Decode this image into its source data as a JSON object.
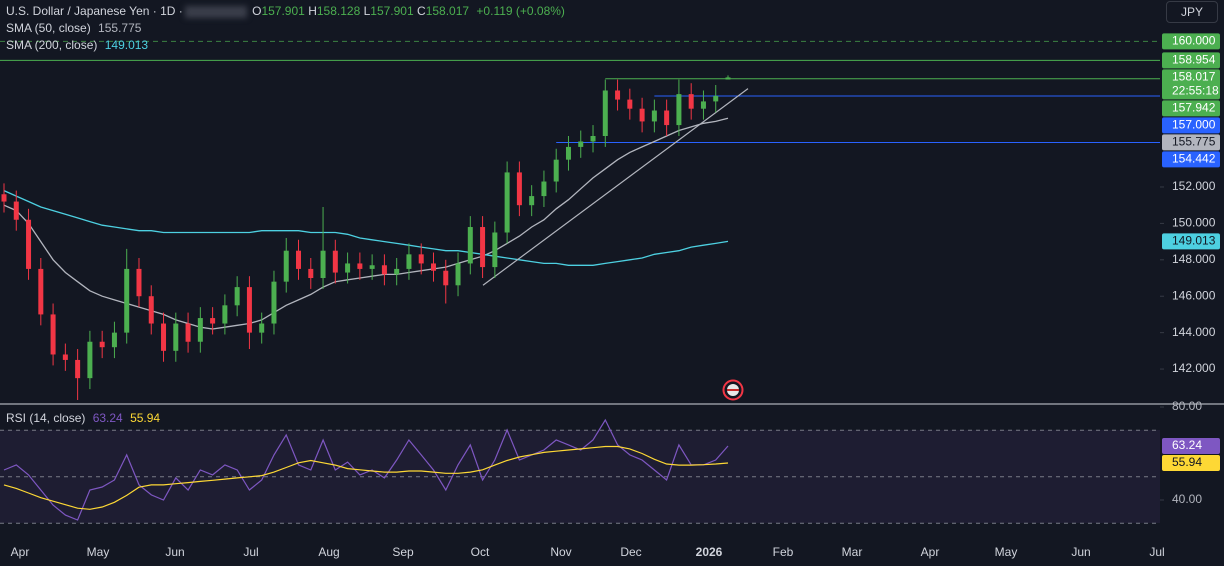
{
  "currency": "JPY",
  "chart_data": [
    {
      "type": "candlestick",
      "title": "U.S. Dollar / Japanese Yen · 1D ·",
      "ohlc_letters": [
        "O",
        "H",
        "L",
        "C"
      ],
      "change": "+0.119 (+0.08%)",
      "countdown": "22:55:18",
      "up_color": "#4caf50",
      "down_color": "#f23645",
      "open": [
        151.6,
        151.2,
        150.2,
        147.5,
        145,
        142.8,
        142.5,
        141.5,
        143.5,
        143.2,
        144,
        147.5,
        146,
        144.5,
        143,
        144.5,
        143.5,
        144.8,
        144.5,
        145.5,
        146.5,
        144,
        144.5,
        146.8,
        148.5,
        147.5,
        147,
        148.5,
        147.3,
        147.8,
        147.5,
        147.7,
        147.2,
        147.5,
        148.3,
        147.8,
        147.4,
        146.6,
        147.8,
        149.8,
        147.6,
        149.5,
        152.8,
        151,
        151.5,
        152.3,
        153.5,
        154.2,
        154.5,
        154.8,
        157.3,
        156.8,
        156.3,
        155.6,
        156.2,
        155.4,
        157.1,
        156.3,
        156.7,
        157.901
      ],
      "high": [
        152.2,
        151.8,
        150.8,
        148.1,
        145.6,
        143.4,
        143.1,
        144.1,
        144.1,
        144.6,
        148.6,
        148.1,
        146.6,
        145.1,
        145.1,
        145.1,
        145.4,
        145.4,
        146.1,
        147.1,
        147.1,
        145.1,
        147.4,
        149.2,
        149.1,
        148.1,
        150.9,
        149.1,
        148.4,
        148.4,
        148.3,
        148.3,
        148.1,
        148.9,
        148.9,
        148.4,
        148,
        148.4,
        150.4,
        150.4,
        150.1,
        153.4,
        153.4,
        152.1,
        152.9,
        154.1,
        154.8,
        155.1,
        155.4,
        157.9,
        157.9,
        157.4,
        156.9,
        156.8,
        156.8,
        157.9,
        157.7,
        157.3,
        157.6,
        158.128
      ],
      "low": [
        150.6,
        149.6,
        146.9,
        144.4,
        142.2,
        141.9,
        140.3,
        140.9,
        142.6,
        142.6,
        143.4,
        145.4,
        143.9,
        142.4,
        142.4,
        142.9,
        142.9,
        143.9,
        143.9,
        144.9,
        143.1,
        143.4,
        143.9,
        146.2,
        146.9,
        146.4,
        146.4,
        146.7,
        146.7,
        146.9,
        146.9,
        146.6,
        146.6,
        146.9,
        147.2,
        146.8,
        145.6,
        146,
        147.2,
        147,
        147,
        148.9,
        150.4,
        150.4,
        150.9,
        151.7,
        152.9,
        153.6,
        153.9,
        154.2,
        156.2,
        155.7,
        155,
        155,
        154.8,
        154.8,
        155.7,
        155.7,
        156.1,
        157.901
      ],
      "close": [
        151.2,
        150.2,
        147.5,
        145,
        142.8,
        142.5,
        141.5,
        143.5,
        143.2,
        144,
        147.5,
        146,
        144.5,
        143,
        144.5,
        143.5,
        144.8,
        144.5,
        145.5,
        146.5,
        144,
        144.5,
        146.8,
        148.5,
        147.5,
        147,
        148.5,
        147.3,
        147.8,
        147.5,
        147.7,
        147.2,
        147.5,
        148.3,
        147.8,
        147.4,
        146.6,
        147.8,
        149.8,
        147.6,
        149.5,
        152.8,
        151,
        151.5,
        152.3,
        153.5,
        154.2,
        154.5,
        154.8,
        157.3,
        156.8,
        156.3,
        155.6,
        156.2,
        155.4,
        157.1,
        156.3,
        156.7,
        157,
        158.017
      ],
      "series": [
        {
          "name": "SMA (50, close)",
          "color": "#b2b5be",
          "values": [
            151,
            150.7,
            150,
            149,
            148,
            147.3,
            146.8,
            146.3,
            146,
            145.8,
            145.6,
            145.4,
            145.2,
            145,
            144.7,
            144.5,
            144.3,
            144.2,
            144.3,
            144.4,
            144.5,
            144.7,
            145.1,
            145.5,
            145.8,
            146.1,
            146.5,
            146.8,
            146.9,
            147,
            147.1,
            147.2,
            147.2,
            147.3,
            147.4,
            147.5,
            147.6,
            147.8,
            148,
            148.2,
            148.5,
            148.9,
            149.3,
            149.8,
            150.2,
            150.8,
            151.3,
            151.9,
            152.5,
            153,
            153.5,
            153.9,
            154.2,
            154.5,
            154.8,
            155.1,
            155.3,
            155.5,
            155.6,
            155.775
          ]
        },
        {
          "name": "SMA (200, close)",
          "color": "#4dd0e1",
          "values": [
            151.8,
            151.5,
            151.2,
            150.9,
            150.7,
            150.5,
            150.3,
            150.1,
            149.9,
            149.8,
            149.7,
            149.6,
            149.6,
            149.5,
            149.5,
            149.5,
            149.5,
            149.5,
            149.5,
            149.5,
            149.5,
            149.6,
            149.6,
            149.6,
            149.6,
            149.5,
            149.5,
            149.5,
            149.4,
            149.2,
            149.1,
            149,
            148.9,
            148.8,
            148.7,
            148.6,
            148.5,
            148.5,
            148.4,
            148.3,
            148.2,
            148.1,
            148,
            147.9,
            147.8,
            147.8,
            147.7,
            147.7,
            147.7,
            147.8,
            147.9,
            148,
            148.1,
            148.3,
            148.4,
            148.5,
            148.7,
            148.8,
            148.9,
            149.013
          ]
        }
      ],
      "levels": [
        {
          "value": 160,
          "label": "160.000",
          "color": "#4caf50",
          "style": "dashed"
        },
        {
          "value": 158.954,
          "label": "158.954",
          "color": "#4caf50",
          "style": "solid"
        },
        {
          "value": 157.942,
          "label": "157.942",
          "color": "#4caf50",
          "style": "solid"
        },
        {
          "value": 157,
          "label": "157.000",
          "color": "#2962ff",
          "style": "solid"
        },
        {
          "value": 154.442,
          "label": "154.442",
          "color": "#2962ff",
          "style": "solid"
        }
      ],
      "trendline": {
        "values": [
          146.6,
          157.4
        ],
        "color": "#b2b5be"
      },
      "ylim": [
        140.08,
        162.27
      ],
      "yticks": [
        {
          "value": 142,
          "label": "142.000"
        },
        {
          "value": 144,
          "label": "144.000"
        },
        {
          "value": 146,
          "label": "146.000"
        },
        {
          "value": 148,
          "label": "148.000"
        },
        {
          "value": 150,
          "label": "150.000"
        },
        {
          "value": 152,
          "label": "152.000"
        }
      ],
      "x_labels": [
        "Apr",
        "May",
        "Jun",
        "Jul",
        "Aug",
        "Sep",
        "Oct",
        "Nov",
        "Dec",
        "2026",
        "Feb",
        "Mar",
        "Apr",
        "May",
        "Jun",
        "Jul"
      ]
    },
    {
      "type": "line",
      "title": "RSI (14, close)",
      "series": [
        {
          "color": "#7e57c2",
          "values": [
            52.9,
            55.1,
            50.8,
            44.3,
            37.8,
            33.5,
            31.4,
            44.3,
            45.6,
            48.6,
            59.4,
            46.5,
            42.2,
            40,
            49.5,
            44.3,
            52.9,
            50.8,
            55.1,
            52.9,
            44.3,
            48.6,
            59.4,
            68,
            55.1,
            52.9,
            65.8,
            52.9,
            56.3,
            50.8,
            52.9,
            49.5,
            57.2,
            65.8,
            59.4,
            52.9,
            44.3,
            55.1,
            63.7,
            48.6,
            57.2,
            70.1,
            57.2,
            59.4,
            61.5,
            65.8,
            63.7,
            61.5,
            65.8,
            74.4,
            63.7,
            59.4,
            57.2,
            52.9,
            48.6,
            63.7,
            55.1,
            55.1,
            57.2,
            63.24
          ]
        },
        {
          "color": "#fdd835",
          "values": [
            46.5,
            45,
            43,
            41,
            39.5,
            38,
            36.5,
            36,
            37,
            39,
            42,
            45.5,
            46.5,
            46.5,
            47,
            47.5,
            48,
            48.5,
            49,
            49.5,
            50,
            50.5,
            52,
            54,
            56,
            57,
            56,
            55,
            53.5,
            53,
            52.5,
            52,
            52,
            52.5,
            52.5,
            52,
            51.5,
            51.5,
            52,
            53,
            55,
            57,
            58.5,
            59.5,
            60.5,
            61,
            61.5,
            62,
            62.5,
            63,
            63,
            62,
            60,
            57.5,
            55.5,
            55,
            55,
            55.2,
            55.5,
            55.94
          ]
        }
      ],
      "bands": [
        70,
        50,
        30
      ],
      "band_color": "#7e57c2",
      "ylim": [
        22.8,
        81.3
      ],
      "yticks": [
        {
          "value": 80,
          "label": "80.00"
        },
        {
          "value": 40,
          "label": "40.00"
        }
      ]
    }
  ]
}
